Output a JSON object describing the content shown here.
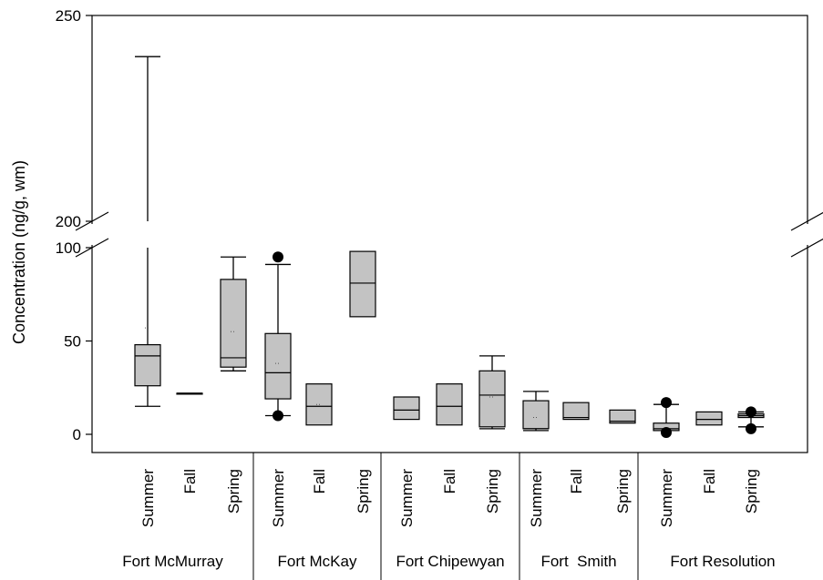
{
  "chart_data": {
    "type": "box",
    "ylabel": "Concentration (ng/g, wm)",
    "y_axis": {
      "broken": true,
      "lower_segment": [
        0,
        100
      ],
      "upper_segment": [
        200,
        250
      ],
      "tick_labels": [
        "0",
        "50",
        "100",
        "200",
        "250"
      ]
    },
    "grid": false,
    "groups": [
      {
        "site": "Fort McMurray",
        "boxes": [
          {
            "season": "Summer",
            "whisker_low": 15,
            "q1": 26,
            "median": 42,
            "q3": 48,
            "whisker_high": 240,
            "mean": 57
          },
          {
            "season": "Fall",
            "whisker_low": 22,
            "q1": 22,
            "median": 22,
            "q3": 22,
            "whisker_high": 22
          },
          {
            "season": "Spring",
            "whisker_low": 34,
            "q1": 36,
            "median": 41,
            "q3": 83,
            "whisker_high": 95,
            "mean": 55
          }
        ]
      },
      {
        "site": "Fort McKay",
        "boxes": [
          {
            "season": "Summer",
            "whisker_low": 10,
            "q1": 19,
            "median": 33,
            "q3": 54,
            "whisker_high": 91,
            "mean": 38,
            "outliers": [
              10,
              95
            ]
          },
          {
            "season": "Fall",
            "whisker_low": 5,
            "q1": 5,
            "median": 15,
            "q3": 27,
            "whisker_high": 27,
            "mean": 16
          },
          {
            "season": "Spring",
            "whisker_low": 63,
            "q1": 63,
            "median": 81,
            "q3": 98,
            "whisker_high": 98
          }
        ]
      },
      {
        "site": "Fort Chipewyan",
        "boxes": [
          {
            "season": "Summer",
            "whisker_low": 8,
            "q1": 8,
            "median": 13,
            "q3": 20,
            "whisker_high": 20
          },
          {
            "season": "Fall",
            "whisker_low": 5,
            "q1": 5,
            "median": 15,
            "q3": 27,
            "whisker_high": 27
          },
          {
            "season": "Spring",
            "whisker_low": 3,
            "q1": 4,
            "median": 21,
            "q3": 34,
            "whisker_high": 42,
            "mean": 20
          }
        ]
      },
      {
        "site": "Fort  Smith",
        "boxes": [
          {
            "season": "Summer",
            "whisker_low": 2,
            "q1": 3,
            "median": 3,
            "q3": 18,
            "whisker_high": 23,
            "mean": 9
          },
          {
            "season": "Fall",
            "whisker_low": 8,
            "q1": 8,
            "median": 9,
            "q3": 17,
            "whisker_high": 17
          },
          {
            "season": "Spring",
            "whisker_low": 6,
            "q1": 6,
            "median": 7,
            "q3": 13,
            "whisker_high": 13
          }
        ]
      },
      {
        "site": "Fort Resolution",
        "boxes": [
          {
            "season": "Summer",
            "whisker_low": 2,
            "q1": 2,
            "median": 3,
            "q3": 6,
            "whisker_high": 16,
            "outliers": [
              1,
              17
            ]
          },
          {
            "season": "Fall",
            "whisker_low": 5,
            "q1": 5,
            "median": 8,
            "q3": 12,
            "whisker_high": 12
          },
          {
            "season": "Spring",
            "whisker_low": 4,
            "q1": 9,
            "median": 10,
            "q3": 11,
            "whisker_high": 12,
            "outliers": [
              3,
              12
            ]
          }
        ]
      }
    ]
  }
}
